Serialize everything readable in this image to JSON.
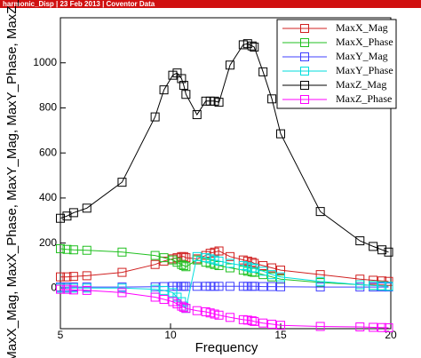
{
  "chart_data": {
    "type": "line",
    "header": "harmonic_Disp | 23 Feb 2013 | Coventor Data",
    "xlabel": "Frequency",
    "ylabel": "MaxX_Mag, MaxX_Phase, MaxY_Mag, MaxY_Phase, MaxZ_Mag, MaxZ_Phase",
    "x": [
      5,
      5.3,
      5.6,
      6.2,
      7.8,
      9.3,
      9.7,
      10.1,
      10.3,
      10.5,
      10.6,
      10.7,
      11.2,
      11.6,
      11.8,
      12.0,
      12.2,
      12.7,
      13.3,
      13.5,
      13.7,
      13.8,
      14.2,
      14.6,
      15.0,
      16.8,
      18.6,
      19.2,
      19.6,
      19.9
    ],
    "xlim": [
      5,
      20
    ],
    "xticks": [
      5,
      10,
      15,
      20
    ],
    "ylim": [
      -180,
      1200
    ],
    "yticks": [
      0,
      200,
      400,
      600,
      800,
      1000
    ],
    "legend": "upper right",
    "series": [
      {
        "name": "MaxX_Mag",
        "color": "#d02020",
        "values": [
          50,
          50,
          52,
          55,
          70,
          105,
          120,
          130,
          135,
          140,
          140,
          135,
          130,
          145,
          155,
          160,
          165,
          140,
          125,
          120,
          115,
          110,
          100,
          90,
          80,
          60,
          40,
          35,
          32,
          30
        ]
      },
      {
        "name": "MaxX_Phase",
        "color": "#20c020",
        "values": [
          175,
          172,
          170,
          168,
          160,
          145,
          135,
          125,
          115,
          105,
          100,
          95,
          125,
          115,
          110,
          105,
          100,
          90,
          80,
          75,
          72,
          70,
          60,
          50,
          40,
          25,
          15,
          12,
          10,
          8
        ]
      },
      {
        "name": "MaxY_Mag",
        "color": "#4040ff",
        "values": [
          5,
          5,
          5,
          5,
          5,
          6,
          7,
          8,
          8,
          8,
          8,
          8,
          8,
          8,
          8,
          8,
          8,
          8,
          8,
          8,
          8,
          8,
          7,
          7,
          6,
          5,
          5,
          5,
          5,
          5
        ]
      },
      {
        "name": "MaxY_Phase",
        "color": "#00dede",
        "values": [
          0,
          0,
          0,
          0,
          0,
          -5,
          -10,
          -20,
          -40,
          -60,
          -80,
          -90,
          140,
          135,
          130,
          125,
          120,
          110,
          100,
          95,
          90,
          88,
          75,
          60,
          50,
          30,
          15,
          12,
          10,
          8
        ]
      },
      {
        "name": "MaxZ_Mag",
        "color": "#000000",
        "values": [
          310,
          320,
          335,
          355,
          470,
          760,
          880,
          945,
          955,
          930,
          900,
          860,
          770,
          830,
          830,
          830,
          825,
          990,
          1080,
          1085,
          1075,
          1070,
          960,
          840,
          685,
          340,
          210,
          185,
          170,
          160
        ]
      },
      {
        "name": "MaxZ_Phase",
        "color": "#ff00ff",
        "values": [
          -5,
          -5,
          -8,
          -10,
          -20,
          -40,
          -50,
          -60,
          -70,
          -80,
          -85,
          -90,
          -100,
          -105,
          -110,
          -115,
          -120,
          -130,
          -140,
          -142,
          -145,
          -148,
          -155,
          -160,
          -165,
          -170,
          -172,
          -174,
          -175,
          -176
        ]
      }
    ]
  }
}
